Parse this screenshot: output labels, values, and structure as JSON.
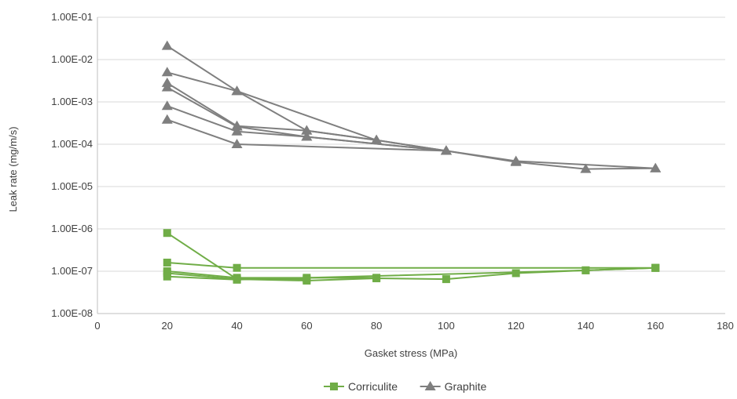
{
  "chart_data": {
    "type": "line",
    "xlabel": "Gasket stress (MPa)",
    "ylabel": "Leak rate (mg/m/s)",
    "xlim": [
      0,
      180
    ],
    "ylim": [
      1e-08,
      0.1
    ],
    "y_scale": "log",
    "x_ticks": [
      0,
      20,
      40,
      60,
      80,
      100,
      120,
      140,
      160,
      180
    ],
    "y_ticks": [
      {
        "value": 1e-08,
        "label": "1.00E-08"
      },
      {
        "value": 1e-07,
        "label": "1.00E-07"
      },
      {
        "value": 1e-06,
        "label": "1.00E-06"
      },
      {
        "value": 1e-05,
        "label": "1.00E-05"
      },
      {
        "value": 0.0001,
        "label": "1.00E-04"
      },
      {
        "value": 0.001,
        "label": "1.00E-03"
      },
      {
        "value": 0.01,
        "label": "1.00E-02"
      },
      {
        "value": 0.1,
        "label": "1.00E-01"
      }
    ],
    "grid": "horizontal",
    "legend_position": "bottom",
    "legend": [
      {
        "label": "Corriculite",
        "color": "#70ad47",
        "marker": "square"
      },
      {
        "label": "Graphite",
        "color": "#7f7f7f",
        "marker": "triangle"
      }
    ],
    "series": [
      {
        "group": "Graphite",
        "x": [
          20,
          40,
          60,
          80,
          100,
          120,
          140,
          160
        ],
        "y": [
          0.021,
          0.0018,
          0.00021,
          0.000125,
          7e-05,
          3.8e-05,
          2.6e-05,
          2.7e-05
        ]
      },
      {
        "group": "Graphite",
        "x": [
          20,
          40,
          80,
          100
        ],
        "y": [
          0.005,
          0.0018,
          0.000125,
          7e-05
        ]
      },
      {
        "group": "Graphite",
        "x": [
          20,
          40,
          60,
          80
        ],
        "y": [
          0.0028,
          0.00027,
          0.00021,
          0.000125
        ]
      },
      {
        "group": "Graphite",
        "x": [
          20,
          40,
          60,
          100
        ],
        "y": [
          0.0022,
          0.00026,
          0.00015,
          7e-05
        ]
      },
      {
        "group": "Graphite",
        "x": [
          20,
          40,
          60,
          100
        ],
        "y": [
          0.0008,
          0.0002,
          0.00015,
          7e-05
        ]
      },
      {
        "group": "Graphite",
        "x": [
          20,
          40,
          100,
          120,
          160
        ],
        "y": [
          0.00038,
          0.0001,
          7e-05,
          4e-05,
          2.7e-05
        ]
      },
      {
        "group": "Corriculite",
        "x": [
          20,
          40,
          60,
          80,
          100,
          120,
          140,
          160
        ],
        "y": [
          8e-07,
          6.5e-08,
          6e-08,
          6.8e-08,
          6.5e-08,
          9e-08,
          1.05e-07,
          1.2e-07
        ]
      },
      {
        "group": "Corriculite",
        "x": [
          20,
          40,
          160
        ],
        "y": [
          1.6e-07,
          1.2e-07,
          1.2e-07
        ]
      },
      {
        "group": "Corriculite",
        "x": [
          20,
          40,
          60,
          80
        ],
        "y": [
          1e-07,
          7e-08,
          7e-08,
          7e-08
        ]
      },
      {
        "group": "Corriculite",
        "x": [
          20,
          40,
          60
        ],
        "y": [
          9e-08,
          6.5e-08,
          6.5e-08
        ]
      },
      {
        "group": "Corriculite",
        "x": [
          20,
          40,
          140,
          160
        ],
        "y": [
          7.5e-08,
          6.3e-08,
          1.05e-07,
          1.2e-07
        ]
      }
    ]
  }
}
